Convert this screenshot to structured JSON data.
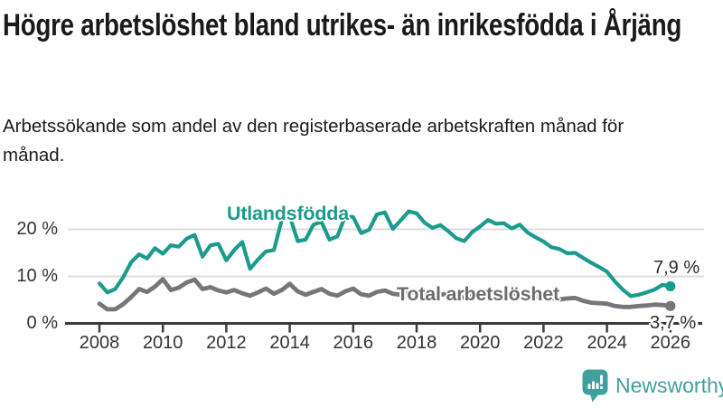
{
  "header": {
    "title": "Högre arbetslöshet bland utrikes- än inrikesfödda i Årjäng",
    "subtitle": "Arbetssökande som andel av den registerbaserade arbetskraften månad för månad."
  },
  "chart_data": {
    "type": "line",
    "title": "Högre arbetslöshet bland utrikes- än inrikesfödda i Årjäng",
    "subtitle": "Arbetssökande som andel av den registerbaserade arbetskraften månad för månad.",
    "xlabel": "",
    "ylabel": "",
    "y_unit": "%",
    "xlim": [
      2008,
      2026
    ],
    "ylim": [
      0,
      25
    ],
    "grid": "horizontal",
    "legend_position": "inline-labels",
    "x_start": 2008.0,
    "x_step": 0.25,
    "x_ticks": [
      "2008",
      "2010",
      "2012",
      "2014",
      "2016",
      "2018",
      "2020",
      "2022",
      "2024",
      "2026"
    ],
    "y_ticks": [
      {
        "value": 0,
        "label": "0 %"
      },
      {
        "value": 10,
        "label": "10 %"
      },
      {
        "value": 20,
        "label": "20 %"
      }
    ],
    "series": [
      {
        "name": "Utlandsfödda",
        "color": "#1b9b8c",
        "last_value_label": "7,9 %",
        "values": [
          8.5,
          6.6,
          7.3,
          9.8,
          13.0,
          14.7,
          13.8,
          16.0,
          14.8,
          16.6,
          16.3,
          18.0,
          18.8,
          14.2,
          16.6,
          16.9,
          13.4,
          15.6,
          17.3,
          11.6,
          13.6,
          15.3,
          15.6,
          22.0,
          22.8,
          17.5,
          17.8,
          21.0,
          21.6,
          17.8,
          18.5,
          22.8,
          22.6,
          19.2,
          19.9,
          23.2,
          23.6,
          20.1,
          21.9,
          23.8,
          23.4,
          21.4,
          20.3,
          20.9,
          19.6,
          18.1,
          17.5,
          19.4,
          20.6,
          22.0,
          21.2,
          21.3,
          20.2,
          21.0,
          19.3,
          18.3,
          17.4,
          16.2,
          15.8,
          14.9,
          15.0,
          13.9,
          12.9,
          12.0,
          11.0,
          8.9,
          7.2,
          5.8,
          6.1,
          6.6,
          7.2,
          8.2,
          7.9
        ]
      },
      {
        "name": "Total arbetslöshet",
        "color": "#76767a",
        "last_value_label": "3,7 %",
        "values": [
          4.2,
          3.0,
          3.0,
          4.1,
          5.6,
          7.3,
          6.7,
          7.8,
          9.4,
          7.1,
          7.6,
          8.7,
          9.3,
          7.3,
          7.7,
          7.0,
          6.6,
          7.1,
          6.4,
          5.9,
          6.6,
          7.4,
          6.3,
          7.1,
          8.4,
          6.8,
          6.1,
          6.7,
          7.3,
          6.3,
          5.9,
          6.8,
          7.4,
          6.2,
          5.9,
          6.7,
          7.0,
          6.3,
          6.1,
          6.6,
          6.6,
          5.9,
          5.6,
          6.1,
          6.3,
          5.7,
          5.5,
          5.9,
          6.6,
          6.9,
          6.4,
          6.2,
          6.5,
          6.1,
          5.7,
          5.7,
          5.9,
          5.4,
          5.1,
          5.3,
          5.4,
          4.8,
          4.4,
          4.3,
          4.2,
          3.7,
          3.5,
          3.5,
          3.7,
          3.8,
          4.0,
          3.9,
          3.7
        ]
      }
    ]
  },
  "footer": {
    "brand": "Newsworthy",
    "brand_color": "#40a09b",
    "logo_icon": "bar-chart-speech-bubble-icon"
  }
}
